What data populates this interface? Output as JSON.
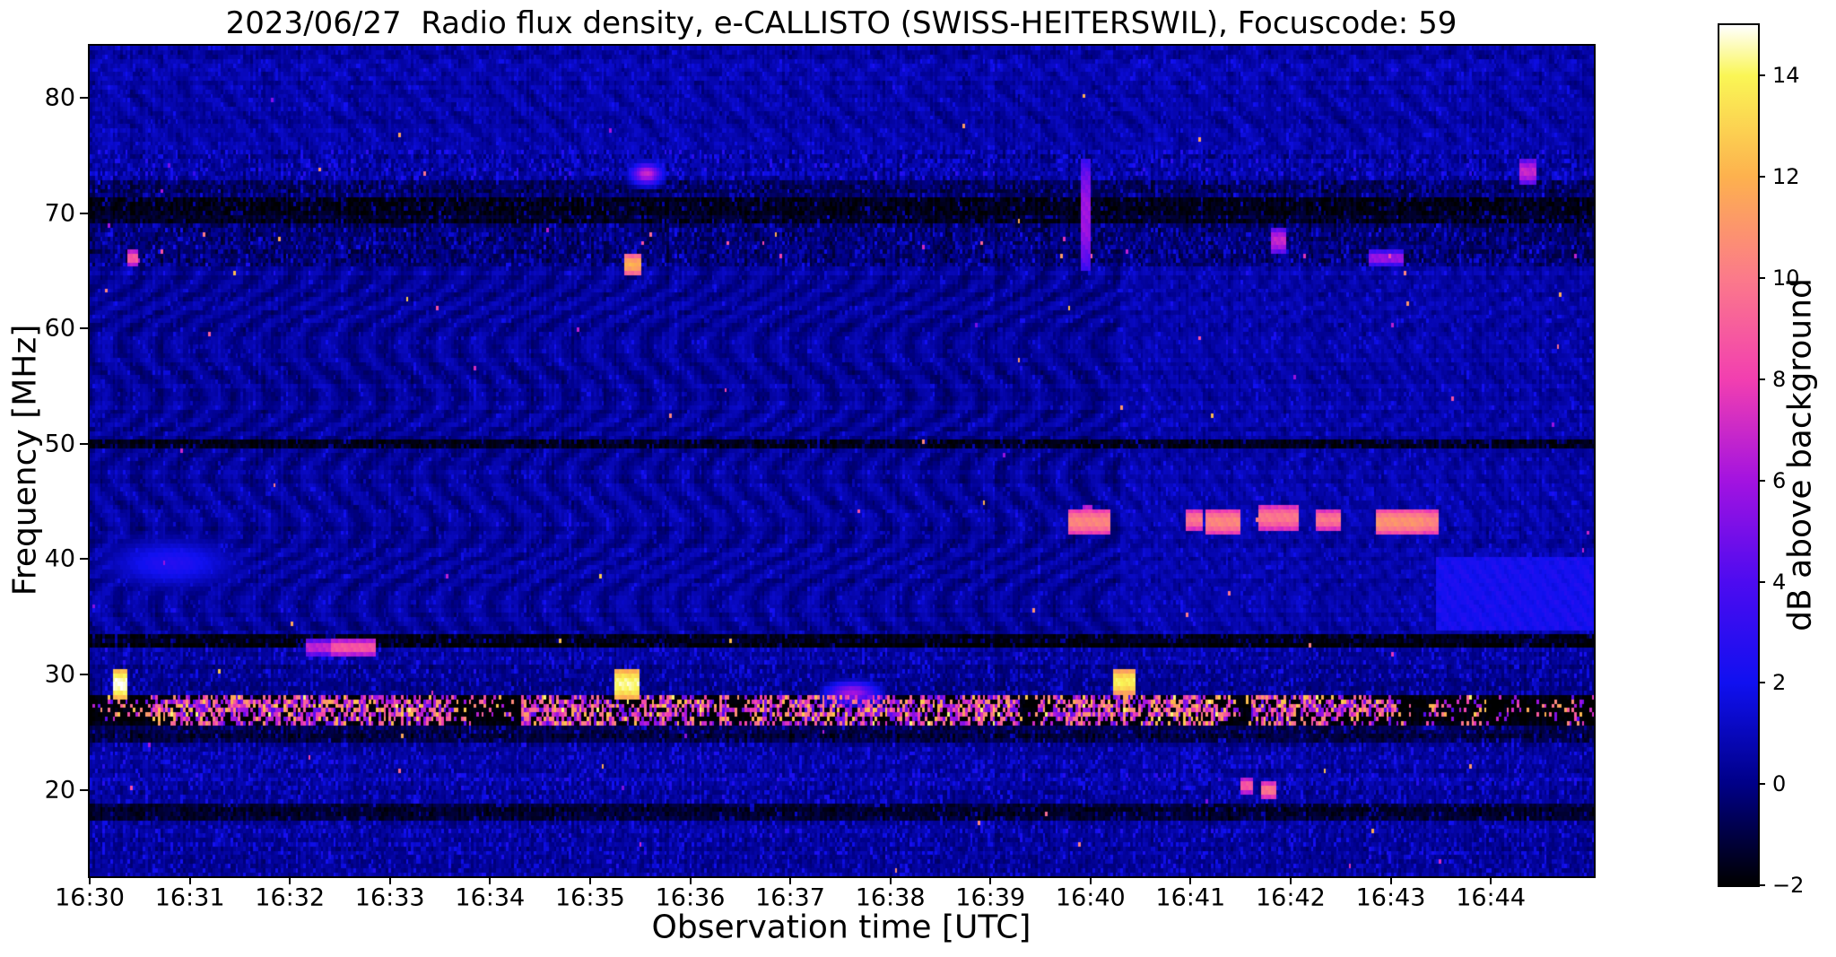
{
  "figure": {
    "title": "2023/06/27  Radio flux density, e-CALLISTO (SWISS-HEITERSWIL), Focuscode: 59",
    "x_axis": {
      "label": "Observation time [UTC]",
      "ticks": [
        "16:30",
        "16:31",
        "16:32",
        "16:33",
        "16:34",
        "16:35",
        "16:36",
        "16:37",
        "16:38",
        "16:39",
        "16:40",
        "16:41",
        "16:42",
        "16:43",
        "16:44"
      ]
    },
    "y_axis": {
      "label": "Frequency [MHz]",
      "ticks": [
        80,
        70,
        60,
        50,
        40,
        30,
        20
      ]
    },
    "colorbar": {
      "label": "dB above background",
      "ticks": [
        14,
        12,
        10,
        8,
        6,
        4,
        2,
        0,
        -2
      ],
      "min": -2,
      "max": 15,
      "stops": [
        {
          "v": -2,
          "color": "#000000"
        },
        {
          "v": 0,
          "color": "#000087"
        },
        {
          "v": 2,
          "color": "#1010f0"
        },
        {
          "v": 4,
          "color": "#4d0bf0"
        },
        {
          "v": 6,
          "color": "#a313e0"
        },
        {
          "v": 8,
          "color": "#f23fb0"
        },
        {
          "v": 10,
          "color": "#fb7a8a"
        },
        {
          "v": 12,
          "color": "#fdb14e"
        },
        {
          "v": 14,
          "color": "#faf655"
        },
        {
          "v": 15,
          "color": "#ffffff"
        }
      ]
    }
  },
  "chart_data": {
    "type": "heatmap",
    "subtype": "radio-spectrogram",
    "title": "2023/06/27  Radio flux density, e-CALLISTO (SWISS-HEITERSWIL), Focuscode: 59",
    "xlabel": "Observation time [UTC]",
    "ylabel": "Frequency [MHz]",
    "zlabel": "dB above background",
    "x_range_utc": [
      "16:30:00",
      "16:45:00"
    ],
    "x_ticks": [
      "16:30",
      "16:31",
      "16:32",
      "16:33",
      "16:34",
      "16:35",
      "16:36",
      "16:37",
      "16:38",
      "16:39",
      "16:40",
      "16:41",
      "16:42",
      "16:43",
      "16:44"
    ],
    "y_range_mhz": [
      12.5,
      84.5
    ],
    "y_ticks_mhz": [
      80,
      70,
      60,
      50,
      40,
      30,
      20
    ],
    "z_range_db": [
      -2,
      15
    ],
    "colormap": "gnuplot2-like (black-blue-violet-magenta-pink-orange-yellow-white)",
    "background_level_db": 0.8,
    "background_texture": "dark-blue noise with wavy interference moire over 33-65 MHz; fine diagonal striping in upper-right and right third",
    "bands": [
      {
        "f": [
          75.6,
          84.5
        ],
        "base": 0.85,
        "noise": 0.7,
        "type": "quiet-diag"
      },
      {
        "f": [
          73.0,
          75.6
        ],
        "base": 0.4,
        "noise": 1.5,
        "type": "dashes"
      },
      {
        "f": [
          71.2,
          73.0
        ],
        "base": -0.6,
        "noise": 1.3,
        "type": "dashes"
      },
      {
        "f": [
          69.3,
          71.2
        ],
        "base": -1.5,
        "noise": 0.9,
        "type": "dark-dashes"
      },
      {
        "f": [
          65.4,
          69.3
        ],
        "base": -0.4,
        "noise": 1.6,
        "type": "dashes",
        "spark": 0.004
      },
      {
        "f": [
          50.3,
          65.4
        ],
        "base": 0.85,
        "noise": 0.55,
        "type": "wave"
      },
      {
        "f": [
          49.7,
          50.3
        ],
        "base": -1.6,
        "noise": 0.8,
        "type": "dark-dashes"
      },
      {
        "f": [
          33.4,
          49.7
        ],
        "base": 0.85,
        "noise": 0.55,
        "type": "wave"
      },
      {
        "f": [
          32.3,
          33.4
        ],
        "base": -1.8,
        "noise": 0.7,
        "type": "dark-dashes"
      },
      {
        "f": [
          30.9,
          32.3
        ],
        "base": 0.3,
        "noise": 0.9,
        "type": "dashes"
      },
      {
        "f": [
          28.4,
          30.9
        ],
        "base": 0.1,
        "noise": 0.9,
        "type": "dashes"
      },
      {
        "f": [
          25.7,
          28.4
        ],
        "base": -1.9,
        "noise": 0.5,
        "type": "active"
      },
      {
        "f": [
          24.1,
          25.7
        ],
        "base": -1.0,
        "noise": 1.2,
        "type": "dark-dashes"
      },
      {
        "f": [
          21.4,
          24.1
        ],
        "base": 0.2,
        "noise": 0.9,
        "type": "dashes"
      },
      {
        "f": [
          20.1,
          21.4
        ],
        "base": 0.5,
        "noise": 1.2,
        "type": "dashes"
      },
      {
        "f": [
          18.9,
          20.1
        ],
        "base": 0.2,
        "noise": 0.8,
        "type": "dashes"
      },
      {
        "f": [
          17.2,
          18.9
        ],
        "base": -1.3,
        "noise": 0.9,
        "type": "dark-dashes"
      },
      {
        "f": [
          16.0,
          17.2
        ],
        "base": 0.4,
        "noise": 1.0,
        "type": "dashes"
      },
      {
        "f": [
          12.5,
          16.0
        ],
        "base": 0.25,
        "noise": 0.9,
        "type": "dashes"
      }
    ],
    "rfi_active_band": {
      "f_mhz": [
        25.7,
        28.4
      ],
      "description": "dense vertical RFI dashes (3-14 dB) on near-black background across full duration",
      "cluster_windows_min_after_1630": [
        [
          0.55,
          3.6
        ],
        [
          4.3,
          6.4
        ],
        [
          6.6,
          9.3
        ],
        [
          9.5,
          11.4
        ],
        [
          11.6,
          13.1
        ]
      ],
      "in_cluster_density": 0.55,
      "out_cluster_density": 0.16
    },
    "bursts": [
      {
        "utc": "16:30:17",
        "t": 0.28,
        "f": 29.4,
        "w": 0.1,
        "h": 1.9,
        "db": 15
      },
      {
        "utc": "16:30:25",
        "t": 0.42,
        "f": 66.2,
        "w": 0.05,
        "h": 0.9,
        "db": 9
      },
      {
        "utc": "16:30:42",
        "t": 0.7,
        "f": 40.0,
        "w": 1.8,
        "h": 5.0,
        "db": 2.6,
        "soft": true
      },
      {
        "utc": "16:32:18",
        "t": 2.3,
        "f": 32.7,
        "w": 0.25,
        "h": 0.7,
        "db": 7
      },
      {
        "utc": "16:32:37",
        "t": 2.62,
        "f": 32.7,
        "w": 0.4,
        "h": 0.8,
        "db": 9
      },
      {
        "utc": "16:35:21",
        "t": 5.35,
        "f": 29.4,
        "w": 0.22,
        "h": 1.8,
        "db": 14.5
      },
      {
        "utc": "16:35:25",
        "t": 5.42,
        "f": 65.9,
        "w": 0.12,
        "h": 1.2,
        "db": 12
      },
      {
        "utc": "16:35:33",
        "t": 5.55,
        "f": 73.6,
        "w": 0.35,
        "h": 1.8,
        "db": 7,
        "soft": true
      },
      {
        "utc": "16:37:36",
        "t": 7.6,
        "f": 28.7,
        "w": 0.6,
        "h": 2.0,
        "db": 6,
        "soft": true
      },
      {
        "utc": "16:39:56",
        "t": 9.93,
        "f": 70.0,
        "w": 0.03,
        "h": 9.0,
        "db": 6
      },
      {
        "utc": "16:39:57",
        "t": 9.95,
        "f": 44.0,
        "w": 0.04,
        "h": 1.0,
        "db": 9
      },
      {
        "utc": "16:39:59",
        "t": 9.98,
        "f": 43.6,
        "w": 0.38,
        "h": 1.5,
        "db": 10.5
      },
      {
        "utc": "16:40:19",
        "t": 10.32,
        "f": 29.7,
        "w": 0.18,
        "h": 1.6,
        "db": 14
      },
      {
        "utc": "16:41:01",
        "t": 11.02,
        "f": 43.6,
        "w": 0.14,
        "h": 1.4,
        "db": 10
      },
      {
        "utc": "16:41:19",
        "t": 11.32,
        "f": 43.6,
        "w": 0.3,
        "h": 1.5,
        "db": 10.5
      },
      {
        "utc": "16:41:33",
        "t": 11.55,
        "f": 20.6,
        "w": 0.08,
        "h": 0.8,
        "db": 9
      },
      {
        "utc": "16:41:45",
        "t": 11.75,
        "f": 20.3,
        "w": 0.1,
        "h": 0.9,
        "db": 10
      },
      {
        "utc": "16:41:51",
        "t": 11.85,
        "f": 67.9,
        "w": 0.1,
        "h": 1.7,
        "db": 7
      },
      {
        "utc": "16:41:52",
        "t": 11.86,
        "f": 43.7,
        "w": 0.34,
        "h": 1.4,
        "db": 10
      },
      {
        "utc": "16:42:22",
        "t": 12.36,
        "f": 43.6,
        "w": 0.22,
        "h": 1.4,
        "db": 10
      },
      {
        "utc": "16:42:57",
        "t": 12.95,
        "f": 66.3,
        "w": 0.3,
        "h": 0.9,
        "db": 6
      },
      {
        "utc": "16:43:05",
        "t": 13.08,
        "f": 43.5,
        "w": 0.42,
        "h": 1.7,
        "db": 11
      },
      {
        "utc": "16:43:22",
        "t": 13.36,
        "f": 43.6,
        "w": 0.14,
        "h": 1.5,
        "db": 10.5
      },
      {
        "utc": "16:44:21",
        "t": 14.35,
        "f": 73.8,
        "w": 0.12,
        "h": 1.3,
        "db": 7
      }
    ],
    "enhanced_block": {
      "utc_start": "16:43:27",
      "t": [
        13.45,
        15.03
      ],
      "f_mhz": [
        33.8,
        40.3
      ],
      "db": 2.2,
      "description": "sharp-edged brighter blue rectangle with faint diagonal stripes, lower-right corner"
    }
  }
}
